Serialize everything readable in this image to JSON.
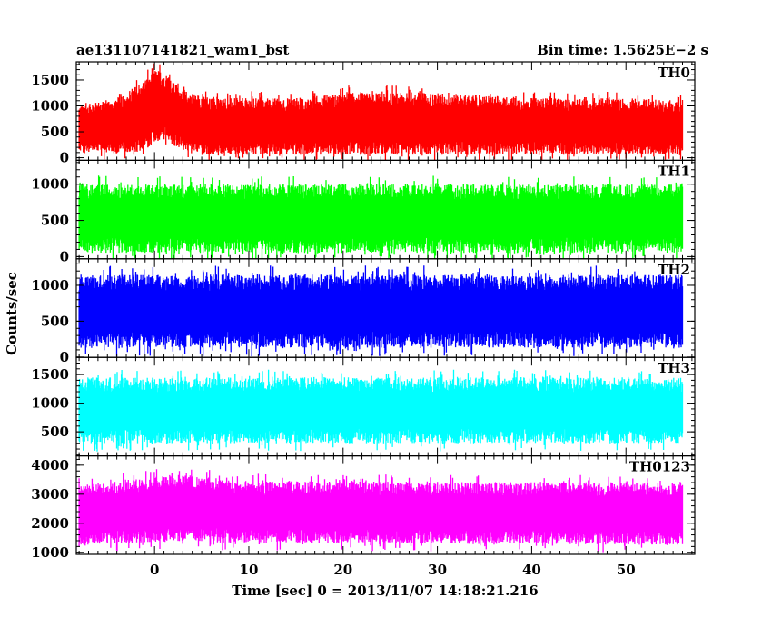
{
  "chart_data": {
    "type": "line",
    "title": "ae131107141821_wam1_bst",
    "subtitle": "Bin time: 1.5625E−2 s",
    "xlabel": "Time [sec] 0 = 2013/11/07 14:18:21.216",
    "ylabel": "Counts/sec",
    "xlim": [
      -8.3,
      57.3
    ],
    "data_x_range": [
      -8.0,
      56.0
    ],
    "x_ticks": [
      0,
      10,
      20,
      30,
      40,
      50
    ],
    "grid": false,
    "panels": [
      {
        "name": "TH0",
        "color": "#ff0000",
        "ylim": [
          -50,
          1850
        ],
        "y_ticks": [
          0,
          500,
          1000,
          1500
        ],
        "low_envelope": [
          [
            -8,
            100
          ],
          [
            -4,
            80
          ],
          [
            -1,
            150
          ],
          [
            0,
            300
          ],
          [
            1,
            320
          ],
          [
            3,
            150
          ],
          [
            6,
            60
          ],
          [
            20,
            50
          ],
          [
            40,
            60
          ],
          [
            56,
            50
          ]
        ],
        "high_envelope": [
          [
            -8,
            1000
          ],
          [
            -4,
            1150
          ],
          [
            -1,
            1500
          ],
          [
            0,
            1700
          ],
          [
            1,
            1650
          ],
          [
            3,
            1300
          ],
          [
            6,
            1150
          ],
          [
            15,
            1150
          ],
          [
            20,
            1250
          ],
          [
            30,
            1250
          ],
          [
            40,
            1150
          ],
          [
            50,
            1150
          ],
          [
            56,
            1100
          ]
        ],
        "sigma": 1.9
      },
      {
        "name": "TH1",
        "color": "#00ff00",
        "ylim": [
          -30,
          1330
        ],
        "y_ticks": [
          0,
          500,
          1000
        ],
        "low_envelope": [
          [
            -8,
            50
          ],
          [
            56,
            50
          ]
        ],
        "high_envelope": [
          [
            -8,
            1000
          ],
          [
            56,
            1000
          ]
        ],
        "sigma": 2.0
      },
      {
        "name": "TH2",
        "color": "#0000ff",
        "ylim": [
          -5,
          1370
        ],
        "y_ticks": [
          0,
          500,
          1000
        ],
        "low_envelope": [
          [
            -8,
            130
          ],
          [
            56,
            130
          ]
        ],
        "high_envelope": [
          [
            -8,
            1150
          ],
          [
            56,
            1150
          ]
        ],
        "sigma": 2.3
      },
      {
        "name": "TH3",
        "color": "#00ffff",
        "ylim": [
          80,
          1800
        ],
        "y_ticks": [
          500,
          1000,
          1500
        ],
        "low_envelope": [
          [
            -8,
            300
          ],
          [
            56,
            300
          ]
        ],
        "high_envelope": [
          [
            -8,
            1450
          ],
          [
            56,
            1450
          ]
        ],
        "sigma": 2.0
      },
      {
        "name": "TH0123",
        "color": "#ff00ff",
        "ylim": [
          930,
          4320
        ],
        "y_ticks": [
          1000,
          2000,
          3000,
          4000
        ],
        "low_envelope": [
          [
            -8,
            1250
          ],
          [
            0,
            1350
          ],
          [
            56,
            1250
          ]
        ],
        "high_envelope": [
          [
            -8,
            3300
          ],
          [
            0,
            3600
          ],
          [
            2,
            3700
          ],
          [
            10,
            3450
          ],
          [
            56,
            3400
          ]
        ],
        "sigma": 2.0
      }
    ]
  }
}
